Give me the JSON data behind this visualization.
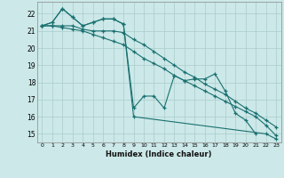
{
  "title": "",
  "xlabel": "Humidex (Indice chaleur)",
  "bg_color": "#cce8e8",
  "grid_color": "#aacccc",
  "line_color": "#1a7070",
  "xlim": [
    -0.5,
    23.5
  ],
  "ylim": [
    14.5,
    22.7
  ],
  "yticks": [
    15,
    16,
    17,
    18,
    19,
    20,
    21,
    22
  ],
  "xticks": [
    0,
    1,
    2,
    3,
    4,
    5,
    6,
    7,
    8,
    9,
    10,
    11,
    12,
    13,
    14,
    15,
    16,
    17,
    18,
    19,
    20,
    21,
    22,
    23
  ],
  "series": [
    {
      "x": [
        0,
        1,
        2,
        3,
        4,
        5,
        6,
        7,
        8,
        9,
        22,
        23
      ],
      "y": [
        21.3,
        21.5,
        22.3,
        21.8,
        21.3,
        21.5,
        21.7,
        21.7,
        21.4,
        16.0,
        15.0,
        14.7
      ]
    },
    {
      "x": [
        0,
        1,
        2,
        3,
        4,
        5,
        6,
        7,
        8,
        9,
        10,
        11,
        12,
        13,
        14,
        15,
        16,
        17,
        18,
        19,
        20,
        21
      ],
      "y": [
        21.3,
        21.5,
        22.3,
        21.8,
        21.3,
        21.5,
        21.7,
        21.7,
        21.4,
        16.5,
        17.2,
        17.2,
        16.5,
        18.4,
        18.1,
        18.2,
        18.2,
        18.5,
        17.5,
        16.2,
        15.8,
        15.0
      ]
    },
    {
      "x": [
        0,
        1,
        2,
        3,
        4,
        5,
        6,
        7,
        8,
        9,
        10,
        11,
        12,
        13,
        14,
        15,
        16,
        17,
        18,
        19,
        20,
        21,
        22,
        23
      ],
      "y": [
        21.3,
        21.3,
        21.3,
        21.3,
        21.1,
        21.0,
        21.0,
        21.0,
        20.9,
        20.5,
        20.2,
        19.8,
        19.4,
        19.0,
        18.6,
        18.3,
        17.9,
        17.6,
        17.3,
        16.9,
        16.5,
        16.2,
        15.8,
        15.4
      ]
    },
    {
      "x": [
        0,
        1,
        2,
        3,
        4,
        5,
        6,
        7,
        8,
        9,
        10,
        11,
        12,
        13,
        14,
        15,
        16,
        17,
        18,
        19,
        20,
        21,
        22,
        23
      ],
      "y": [
        21.3,
        21.3,
        21.2,
        21.1,
        21.0,
        20.8,
        20.6,
        20.4,
        20.2,
        19.8,
        19.4,
        19.1,
        18.8,
        18.4,
        18.1,
        17.8,
        17.5,
        17.2,
        16.9,
        16.6,
        16.3,
        16.0,
        15.5,
        14.9
      ]
    }
  ]
}
